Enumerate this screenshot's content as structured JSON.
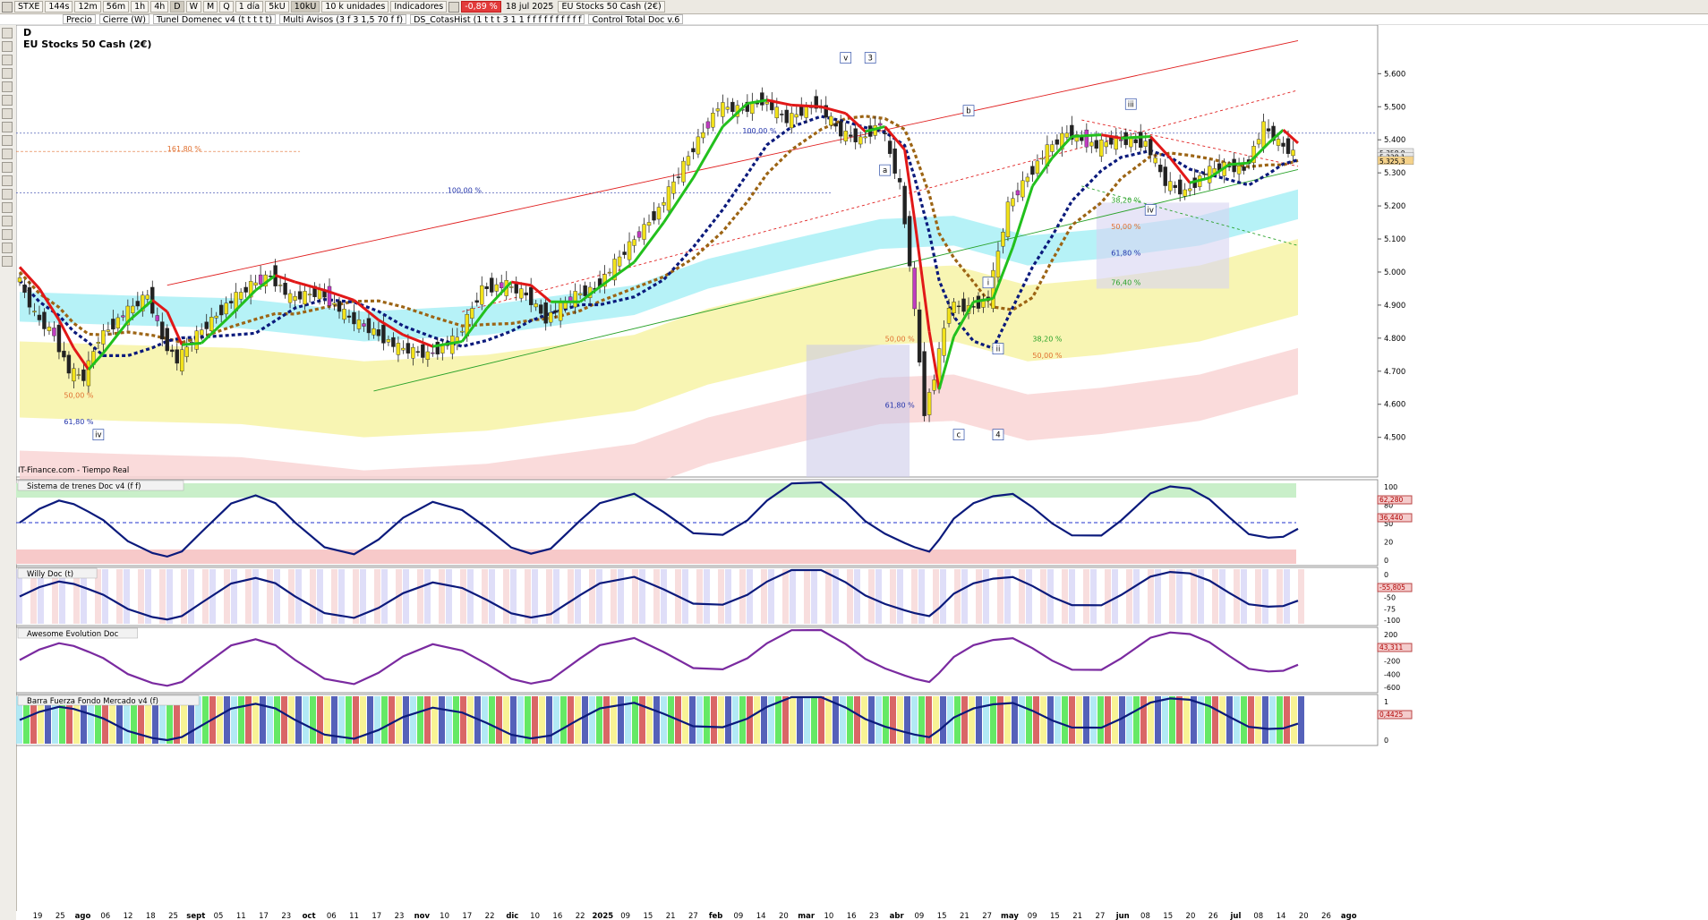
{
  "toolbar": {
    "symbol": "STXE",
    "timeframes": [
      "144s",
      "12m",
      "56m",
      "1h",
      "4h",
      "D",
      "W",
      "M",
      "Q"
    ],
    "active_tf": "D",
    "period": "1 día",
    "units": [
      "5kU",
      "10kU"
    ],
    "units_label": "10 k unidades",
    "indicators_label": "Indicadores",
    "change": "-0,89 %",
    "date": "18 jul 2025",
    "instrument": "EU Stocks 50 Cash (2€)"
  },
  "indicator_tabs": [
    "Precio",
    "Cierre (W)",
    "Tunel Domenec v4 (t t t t t)",
    "Multi Avisos (3 f 3 1,5 70 f f)",
    "DS_CotasHist (1 t t t 3 1 1 f f f f f f f f f f",
    "Control Total Doc v.6"
  ],
  "chart_title": {
    "period_code": "D",
    "name": "EU Stocks 50 Cash (2€)"
  },
  "credit": "IT-Finance.com - Tiempo Real",
  "colors": {
    "up": "#f2e21a",
    "down": "#222222",
    "fast_green": "#22c01d",
    "fast_red": "#e11818",
    "dash_blue": "#0b1a7c",
    "dash_brown": "#9c6414",
    "band_cyan": "#a9f0f6",
    "band_yellow": "#f7f3a6",
    "band_pink": "#f9d5d5"
  },
  "chart_data": {
    "type": "line",
    "title": "EU Stocks 50 Cash (2€)",
    "ylim": [
      4380,
      5720
    ],
    "y_ticks": [
      "5.600",
      "5.500",
      "5.400",
      "5.300",
      "5.200",
      "5.100",
      "5.000",
      "4.900",
      "4.800",
      "4.700",
      "4.600",
      "4.500"
    ],
    "x_ticks": [
      "19",
      "25",
      "ago",
      "06",
      "12",
      "18",
      "25",
      "sept",
      "05",
      "11",
      "17",
      "23",
      "oct",
      "06",
      "11",
      "17",
      "23",
      "nov",
      "10",
      "17",
      "22",
      "dic",
      "10",
      "16",
      "22",
      "2025",
      "09",
      "15",
      "21",
      "27",
      "feb",
      "09",
      "14",
      "20",
      "mar",
      "10",
      "16",
      "23",
      "abr",
      "09",
      "15",
      "21",
      "27",
      "may",
      "09",
      "15",
      "21",
      "27",
      "jun",
      "08",
      "15",
      "20",
      "26",
      "jul",
      "08",
      "14",
      "20",
      "26",
      "ago"
    ],
    "close_points": [
      [
        0,
        5000
      ],
      [
        4,
        4870
      ],
      [
        8,
        4810
      ],
      [
        11,
        4700
      ],
      [
        14,
        4680
      ],
      [
        17,
        4800
      ],
      [
        22,
        4870
      ],
      [
        27,
        4930
      ],
      [
        30,
        4800
      ],
      [
        33,
        4730
      ],
      [
        37,
        4810
      ],
      [
        43,
        4900
      ],
      [
        48,
        4960
      ],
      [
        52,
        4990
      ],
      [
        56,
        4920
      ],
      [
        62,
        4940
      ],
      [
        68,
        4860
      ],
      [
        73,
        4820
      ],
      [
        78,
        4770
      ],
      [
        84,
        4750
      ],
      [
        90,
        4800
      ],
      [
        95,
        4950
      ],
      [
        100,
        4960
      ],
      [
        104,
        4930
      ],
      [
        108,
        4860
      ],
      [
        114,
        4930
      ],
      [
        118,
        4950
      ],
      [
        125,
        5080
      ],
      [
        131,
        5190
      ],
      [
        137,
        5350
      ],
      [
        143,
        5500
      ],
      [
        148,
        5490
      ],
      [
        152,
        5520
      ],
      [
        157,
        5460
      ],
      [
        163,
        5510
      ],
      [
        168,
        5420
      ],
      [
        172,
        5400
      ],
      [
        176,
        5450
      ],
      [
        180,
        5260
      ],
      [
        182,
        5030
      ],
      [
        185,
        4580
      ],
      [
        187,
        4680
      ],
      [
        190,
        4900
      ],
      [
        194,
        4890
      ],
      [
        198,
        4920
      ],
      [
        202,
        5200
      ],
      [
        206,
        5290
      ],
      [
        210,
        5370
      ],
      [
        214,
        5420
      ],
      [
        220,
        5380
      ],
      [
        224,
        5400
      ],
      [
        230,
        5390
      ],
      [
        234,
        5270
      ],
      [
        238,
        5240
      ],
      [
        242,
        5300
      ],
      [
        246,
        5320
      ],
      [
        250,
        5310
      ],
      [
        254,
        5440
      ],
      [
        257,
        5390
      ],
      [
        260,
        5360
      ]
    ],
    "band_upper_points": [
      [
        0,
        4940
      ],
      [
        20,
        4930
      ],
      [
        45,
        4920
      ],
      [
        70,
        4880
      ],
      [
        95,
        4900
      ],
      [
        110,
        4930
      ],
      [
        125,
        4960
      ],
      [
        140,
        5040
      ],
      [
        160,
        5110
      ],
      [
        175,
        5160
      ],
      [
        190,
        5170
      ],
      [
        205,
        5110
      ],
      [
        220,
        5130
      ],
      [
        240,
        5170
      ],
      [
        260,
        5250
      ]
    ],
    "fibonacci_labels": [
      "161,80 %",
      "100,00 %",
      "100,00 %",
      "50,00 %",
      "61,80 %",
      "50,00 %",
      "61,80 %",
      "38,20 %",
      "50,00 %",
      "38,20 %",
      "50,00 %",
      "61,80 %",
      "76,40 %"
    ],
    "wave_labels": [
      "v",
      "3",
      "a",
      "b",
      "c",
      "4",
      "i",
      "ii",
      "iii",
      "iv",
      "iv"
    ],
    "price_tags": [
      "5.358,9",
      "5.338,1",
      "5.325,3"
    ],
    "grid": false
  },
  "panels": [
    {
      "title": "Sistema de trenes Doc v4 (f f)",
      "ticks": [
        "100",
        "80",
        "50",
        "20",
        "0"
      ],
      "readouts": [
        "62,280",
        "36,440"
      ]
    },
    {
      "title": "Willy Doc (t)",
      "ticks": [
        "0",
        "-25",
        "-50",
        "-75",
        "-100"
      ],
      "readouts": [
        "-55,805"
      ]
    },
    {
      "title": "Awesome Evolution Doc",
      "ticks": [
        "200",
        "0",
        "-200",
        "-400",
        "-600"
      ],
      "readouts": [
        "43,311"
      ]
    },
    {
      "title": "Barra Fuerza Fondo Mercado v4 (f)",
      "ticks": [
        "1",
        "0"
      ],
      "readouts": [
        "0,4425"
      ]
    }
  ]
}
